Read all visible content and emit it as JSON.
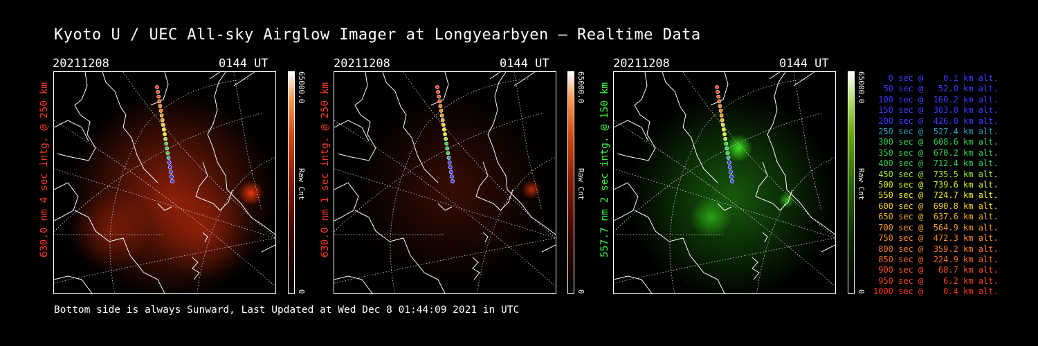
{
  "title": "Kyoto U / UEC All-sky Airglow Imager at Longyearbyen — Realtime Data",
  "footer": "Bottom side is always Sunward, Last Updated at Wed Dec  8 01:44:09 2021 in UTC",
  "panels": [
    {
      "date": "20211208",
      "time": "0144 UT",
      "side_label": "630.0 nm 4 sec intg. @ 250 km",
      "label_color": "#ff3b1f",
      "cbar_max": "65000.0",
      "cbar_min": "0",
      "cbar_unit": "Raw Cnt",
      "colormap": "red",
      "brightness": "high"
    },
    {
      "date": "20211208",
      "time": "0144 UT",
      "side_label": "630.0 nm 1 sec intg. @ 250 km",
      "label_color": "#ff3b1f",
      "cbar_max": "65000.0",
      "cbar_min": "0",
      "cbar_unit": "Raw Cnt",
      "colormap": "red",
      "brightness": "low"
    },
    {
      "date": "20211208",
      "time": "0144 UT",
      "side_label": "557.7 nm 2 sec intg. @ 150 km",
      "label_color": "#3aff3a",
      "cbar_max": "65000.0",
      "cbar_min": "0",
      "cbar_unit": "Raw Cnt",
      "colormap": "green",
      "brightness": "medium"
    }
  ],
  "legend": [
    {
      "text": "   0 sec @    0.1 km alt.",
      "color": "#3c3cff"
    },
    {
      "text": "  50 sec @   52.0 km alt.",
      "color": "#3c3cff"
    },
    {
      "text": " 100 sec @  160.2 km alt.",
      "color": "#3c3cff"
    },
    {
      "text": " 150 sec @  303.8 km alt.",
      "color": "#3c3cff"
    },
    {
      "text": " 200 sec @  426.0 km alt.",
      "color": "#3c3cff"
    },
    {
      "text": " 250 sec @  527.4 km alt.",
      "color": "#2e9fbf"
    },
    {
      "text": " 300 sec @  608.6 km alt.",
      "color": "#2fd04f"
    },
    {
      "text": " 350 sec @  670.2 km alt.",
      "color": "#2fd04f"
    },
    {
      "text": " 400 sec @  712.4 km alt.",
      "color": "#2fd04f"
    },
    {
      "text": " 450 sec @  735.5 km alt.",
      "color": "#9fe83a"
    },
    {
      "text": " 500 sec @  739.6 km alt.",
      "color": "#d8f020"
    },
    {
      "text": " 550 sec @  724.7 km alt.",
      "color": "#f5f020"
    },
    {
      "text": " 600 sec @  690.8 km alt.",
      "color": "#f5d020"
    },
    {
      "text": " 650 sec @  637.6 km alt.",
      "color": "#f5b020"
    },
    {
      "text": " 700 sec @  564.9 km alt.",
      "color": "#f59a20"
    },
    {
      "text": " 750 sec @  472.3 km alt.",
      "color": "#f58a20"
    },
    {
      "text": " 800 sec @  359.2 km alt.",
      "color": "#f57a20"
    },
    {
      "text": " 850 sec @  224.9 km alt.",
      "color": "#f56a20"
    },
    {
      "text": " 900 sec @   68.7 km alt.",
      "color": "#f55520"
    },
    {
      "text": " 950 sec @    6.2 km alt.",
      "color": "#f54520"
    },
    {
      "text": "1000 sec @    0.4 km alt.",
      "color": "#f53520"
    }
  ]
}
